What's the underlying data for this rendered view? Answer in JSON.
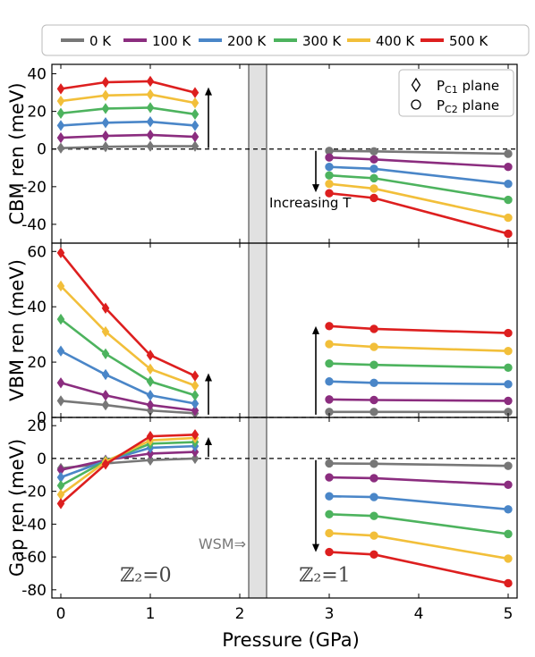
{
  "chart_data": {
    "type": "line",
    "xlabel": "Pressure (GPa)",
    "x_ticks": [
      "0",
      "1",
      "2",
      "3",
      "4",
      "5"
    ],
    "xlim": [
      -0.1,
      5.1
    ],
    "legend": {
      "placement": "top",
      "entries": [
        "0 K",
        "100 K",
        "200 K",
        "300 K",
        "400 K",
        "500 K"
      ],
      "colors": [
        "#777777",
        "#8b2d7f",
        "#4a86c8",
        "#4db35e",
        "#f2bf3a",
        "#dd1f1f"
      ]
    },
    "markers_legend": [
      {
        "marker": "diamond",
        "label_main": "P",
        "label_sub": "C1",
        "label_rest": " plane"
      },
      {
        "marker": "circle",
        "label_main": "P",
        "label_sub": "C2",
        "label_rest": " plane"
      }
    ],
    "wsm_band": [
      2.1,
      2.3
    ],
    "panels": [
      {
        "ylabel": "CBM ren  (meV)",
        "ylim": [
          -50,
          45
        ],
        "yticks": [
          40,
          20,
          0,
          -20,
          -40
        ],
        "annotation": "Increasing T",
        "left_x": [
          0,
          0.5,
          1,
          1.5
        ],
        "right_x": [
          3,
          3.5,
          5
        ],
        "series": [
          {
            "name": "0 K",
            "left": [
              0.5,
              1.2,
              1.5,
              1.5
            ],
            "right": [
              -1,
              -1.2,
              -2.5
            ]
          },
          {
            "name": "100 K",
            "left": [
              6,
              7,
              7.5,
              6.5
            ],
            "right": [
              -4.5,
              -5.5,
              -9.5
            ]
          },
          {
            "name": "200 K",
            "left": [
              12.5,
              14,
              14.5,
              12.5
            ],
            "right": [
              -9.5,
              -10.5,
              -18.5
            ]
          },
          {
            "name": "300 K",
            "left": [
              19,
              21.5,
              22,
              18.5
            ],
            "right": [
              -14,
              -15.5,
              -27
            ]
          },
          {
            "name": "400 K",
            "left": [
              25.5,
              28.5,
              29,
              24.5
            ],
            "right": [
              -18.5,
              -21,
              -36.5
            ]
          },
          {
            "name": "500 K",
            "left": [
              32,
              35.5,
              36,
              30
            ],
            "right": [
              -23.5,
              -26,
              -45
            ]
          }
        ]
      },
      {
        "ylabel": "VBM ren  (meV)",
        "ylim": [
          0,
          63
        ],
        "yticks": [
          60,
          40,
          20,
          0
        ],
        "left_x": [
          0,
          0.5,
          1,
          1.5
        ],
        "right_x": [
          3,
          3.5,
          5
        ],
        "series": [
          {
            "name": "0 K",
            "left": [
              6,
              4.5,
              2.5,
              1.5
            ],
            "right": [
              2,
              2,
              2
            ]
          },
          {
            "name": "100 K",
            "left": [
              12.5,
              8,
              4.5,
              2.5
            ],
            "right": [
              6.5,
              6.3,
              6
            ]
          },
          {
            "name": "200 K",
            "left": [
              24,
              15.5,
              8,
              5
            ],
            "right": [
              13,
              12.5,
              12
            ]
          },
          {
            "name": "300 K",
            "left": [
              35.5,
              23,
              13,
              8
            ],
            "right": [
              19.5,
              19,
              18
            ]
          },
          {
            "name": "400 K",
            "left": [
              47.5,
              31,
              17.5,
              11.5
            ],
            "right": [
              26.5,
              25.5,
              24
            ]
          },
          {
            "name": "500 K",
            "left": [
              59.5,
              39.5,
              22.5,
              15
            ],
            "right": [
              33,
              32,
              30.5
            ]
          }
        ]
      },
      {
        "ylabel": "Gap ren  (meV)",
        "ylim": [
          -85,
          25
        ],
        "yticks": [
          20,
          0,
          -20,
          -40,
          -60,
          -80
        ],
        "left_x": [
          0,
          0.5,
          1,
          1.5
        ],
        "right_x": [
          3,
          3.5,
          5
        ],
        "wsm_label": "WSM⇒",
        "z2_left": "ℤ₂=0",
        "z2_right": "ℤ₂=1",
        "series": [
          {
            "name": "0 K",
            "left": [
              -6,
              -3,
              -1,
              0
            ],
            "right": [
              -3,
              -3.2,
              -4.5
            ]
          },
          {
            "name": "100 K",
            "left": [
              -7,
              -1,
              3,
              4
            ],
            "right": [
              -11.5,
              -12,
              -16
            ]
          },
          {
            "name": "200 K",
            "left": [
              -11.5,
              -1.5,
              6.5,
              7.5
            ],
            "right": [
              -23,
              -23.5,
              -31
            ]
          },
          {
            "name": "300 K",
            "left": [
              -16.5,
              -1.5,
              9,
              10
            ],
            "right": [
              -34,
              -35,
              -46
            ]
          },
          {
            "name": "400 K",
            "left": [
              -22,
              -2,
              11,
              12.5
            ],
            "right": [
              -45.5,
              -47,
              -61
            ]
          },
          {
            "name": "500 K",
            "left": [
              -27.5,
              -3.5,
              13.5,
              14.5
            ],
            "right": [
              -57,
              -58.5,
              -76
            ]
          }
        ]
      }
    ]
  }
}
